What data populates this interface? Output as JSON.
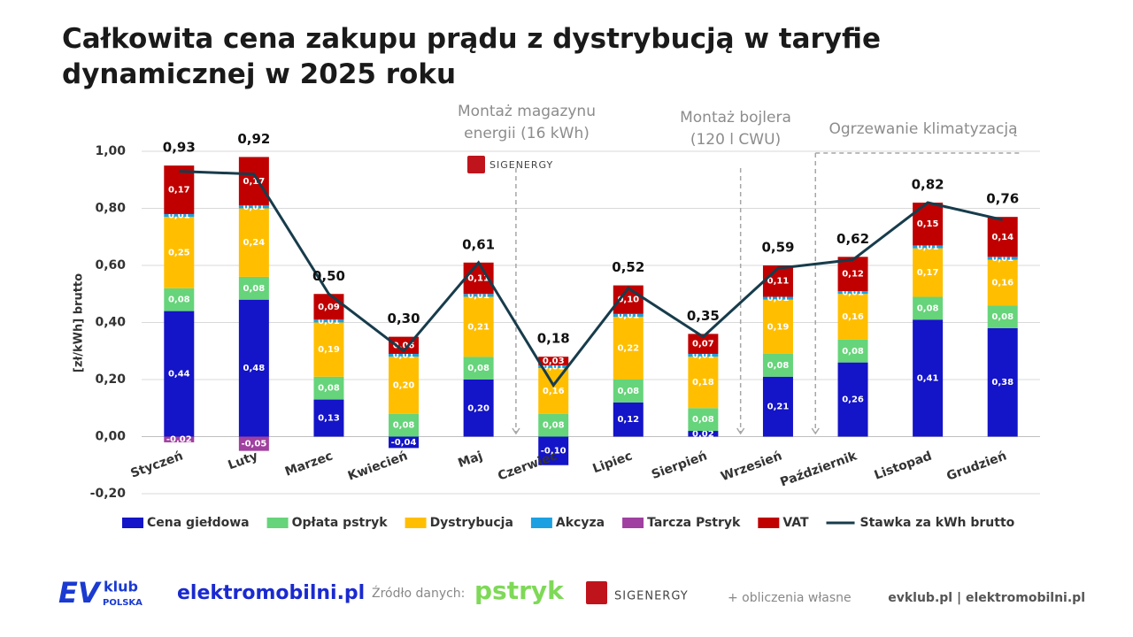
{
  "chart_data": {
    "type": "bar",
    "title": "Całkowita cena zakupu prądu z dystrybucją w taryfie dynamicznej w 2025 roku",
    "y_label": "[zł/kWh] brutto",
    "categories": [
      "Styczeń",
      "Luty",
      "Marzec",
      "Kwiecień",
      "Maj",
      "Czerwiec",
      "Lipiec",
      "Sierpień",
      "Wrzesień",
      "Październik",
      "Listopad",
      "Grudzień"
    ],
    "ylim": [
      -0.2,
      1.0
    ],
    "yticks": [
      {
        "value": -0.2,
        "label": "-0,20"
      },
      {
        "value": 0,
        "label": "0,00"
      },
      {
        "value": 0.2,
        "label": "0,20"
      },
      {
        "value": 0.4,
        "label": "0,40"
      },
      {
        "value": 0.6,
        "label": "0,60"
      },
      {
        "value": 0.8,
        "label": "0,80"
      },
      {
        "value": 1.0,
        "label": "1,00"
      }
    ],
    "grid": true,
    "series": [
      {
        "name": "Cena giełdowa",
        "color": "#1414c8",
        "values": [
          0.44,
          0.48,
          0.13,
          -0.04,
          0.2,
          -0.1,
          0.12,
          0.02,
          0.21,
          0.26,
          0.41,
          0.38
        ],
        "value_labels": [
          "0,44",
          "0,48",
          "0,13",
          "-0,04",
          "0,20",
          "-0,10",
          "0,12",
          "0,02",
          "0,21",
          "0,26",
          "0,41",
          "0,38"
        ]
      },
      {
        "name": "Opłata pstryk",
        "color": "#66d47a",
        "values": [
          0.08,
          0.08,
          0.08,
          0.08,
          0.08,
          0.08,
          0.08,
          0.08,
          0.08,
          0.08,
          0.08,
          0.08
        ],
        "value_labels": [
          "0,08",
          "0,08",
          "0,08",
          "0,08",
          "0,08",
          "0,08",
          "0,08",
          "0,08",
          "0,08",
          "0,08",
          "0,08",
          "0,08"
        ]
      },
      {
        "name": "Dystrybucja",
        "color": "#ffbf00",
        "values": [
          0.25,
          0.24,
          0.19,
          0.2,
          0.21,
          0.16,
          0.22,
          0.18,
          0.19,
          0.16,
          0.17,
          0.16
        ],
        "value_labels": [
          "0,25",
          "0,24",
          "0,19",
          "0,20",
          "0,21",
          "0,16",
          "0,22",
          "0,18",
          "0,19",
          "0,16",
          "0,17",
          "0,16"
        ]
      },
      {
        "name": "Akcyza",
        "color": "#1ba1e2",
        "values": [
          0.01,
          0.01,
          0.01,
          0.01,
          0.01,
          0.01,
          0.01,
          0.01,
          0.01,
          0.01,
          0.01,
          0.01
        ],
        "value_labels": [
          "0,01",
          "0,01",
          "0,01",
          "0,01",
          "0,01",
          "0,01",
          "0,01",
          "0,01",
          "0,01",
          "0,01",
          "0,01",
          "0,01"
        ]
      },
      {
        "name": "Tarcza Pstryk",
        "color": "#a040a0",
        "values": [
          -0.02,
          -0.05,
          null,
          null,
          null,
          null,
          null,
          null,
          null,
          null,
          null,
          null
        ],
        "value_labels": [
          "-0,02",
          "-0,05",
          null,
          null,
          null,
          null,
          null,
          null,
          null,
          null,
          null,
          null
        ]
      },
      {
        "name": "VAT",
        "color": "#c00000",
        "values": [
          0.17,
          0.17,
          0.09,
          0.06,
          0.11,
          0.03,
          0.1,
          0.07,
          0.11,
          0.12,
          0.15,
          0.14
        ],
        "value_labels": [
          "0,17",
          "0,17",
          "0,09",
          "0,06",
          "0,11",
          "0,03",
          "0,10",
          "0,07",
          "0,11",
          "0,12",
          "0,15",
          "0,14"
        ]
      },
      {
        "name": "Stawka za kWh brutto",
        "type": "line",
        "color": "#173c4c",
        "values": [
          0.93,
          0.92,
          0.5,
          0.3,
          0.61,
          0.18,
          0.52,
          0.35,
          0.59,
          0.62,
          0.82,
          0.76
        ],
        "value_labels": [
          "0,93",
          "0,92",
          "0,50",
          "0,30",
          "0,61",
          "0,18",
          "0,52",
          "0,35",
          "0,59",
          "0,62",
          "0,82",
          "0,76"
        ]
      }
    ],
    "annotations": [
      [
        "Montaż magazynu",
        "energii (16 kWh)"
      ],
      [
        "Montaż bojlera",
        "(120 l CWU)"
      ],
      [
        "Ogrzewanie klimatyzacją"
      ]
    ],
    "chart_logo": "SIGENERGY"
  },
  "footer": {
    "ev": "EV",
    "klub": "klub",
    "polska": "POLSKA",
    "site": "elektromobilni.pl",
    "source_label": "Źródło danych:",
    "pstryk": "pstryk",
    "sigenergy": "SIGENERGY",
    "note": "+ obliczenia własne",
    "links": "evklub.pl | elektromobilni.pl"
  }
}
